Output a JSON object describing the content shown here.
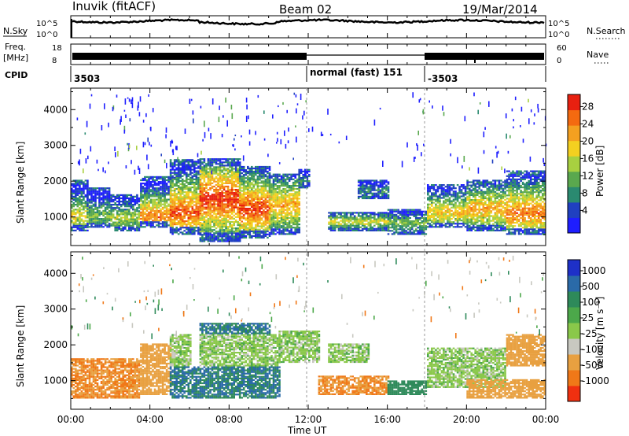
{
  "header": {
    "station": "Inuvik (fitACF)",
    "beam": "Beam 02",
    "date": "19/Mar/2014"
  },
  "strips": {
    "nsky": {
      "left_label": "N.Sky",
      "right_label": "N.Search",
      "left_ticks": [
        "10^5",
        "10^0"
      ],
      "right_ticks": [
        "10^5",
        "10^0"
      ]
    },
    "freq": {
      "left_label": "Freq.",
      "left_unit": "[MHz]",
      "right_label": "Nave",
      "left_ticks": [
        "18",
        "8"
      ],
      "right_ticks": [
        "60",
        "0"
      ]
    },
    "cpid": {
      "label": "CPID",
      "segments": [
        {
          "start_hour": 0,
          "text": "3503"
        },
        {
          "start_hour": 12,
          "text": "normal (fast) 151"
        },
        {
          "start_hour": 18,
          "text": "-3503"
        }
      ]
    }
  },
  "time_axis": {
    "label": "Time UT",
    "ticks": [
      "00:00",
      "04:00",
      "08:00",
      "12:00",
      "16:00",
      "20:00",
      "00:00"
    ],
    "range_hours": [
      0,
      24
    ]
  },
  "power_panel": {
    "ylabel": "Slant Range [km]",
    "yticks": [
      "4000",
      "3000",
      "2000",
      "1000"
    ],
    "colorbar_label": "Power [dB]",
    "colorbar_ticks": [
      "28",
      "24",
      "20",
      "16",
      "12",
      "8",
      "4"
    ],
    "colors": [
      "#1e1eff",
      "#2040c0",
      "#2a8a70",
      "#5aa84e",
      "#a8d040",
      "#f4d020",
      "#f4a020",
      "#f46a10",
      "#e82010"
    ]
  },
  "velocity_panel": {
    "ylabel": "Slant Range [km]",
    "yticks": [
      "4000",
      "3000",
      "2000",
      "1000"
    ],
    "colorbar_label": "Velocity [m s⁻¹]",
    "colorbar_ticks": [
      "1000",
      "500",
      "100",
      "25",
      "-25",
      "-100",
      "-500",
      "-1000"
    ],
    "colors": [
      "#1e30c8",
      "#2a6aa8",
      "#2e8a5a",
      "#4ca84a",
      "#8ac84a",
      "#c8c8c0",
      "#e8a040",
      "#f07818",
      "#f03010"
    ]
  },
  "chart_data": {
    "type": "heatmap",
    "title": "Inuvik (fitACF) Beam 02 19/Mar/2014",
    "xlabel": "Time UT",
    "ylabel": "Slant Range [km]",
    "xlim": [
      0,
      24
    ],
    "ylim": [
      200,
      4600
    ],
    "power_bands": [
      {
        "from": 0.0,
        "to": 0.8,
        "low": 600,
        "high": 2000,
        "peak": 1000,
        "power": 18
      },
      {
        "from": 0.8,
        "to": 2.0,
        "low": 700,
        "high": 1800,
        "peak": 1000,
        "power": 14
      },
      {
        "from": 2.0,
        "to": 3.5,
        "low": 600,
        "high": 1600,
        "peak": 950,
        "power": 16
      },
      {
        "from": 3.5,
        "to": 5.0,
        "low": 700,
        "high": 2100,
        "peak": 1000,
        "power": 24
      },
      {
        "from": 5.0,
        "to": 6.5,
        "low": 500,
        "high": 2600,
        "peak": 1100,
        "power": 26
      },
      {
        "from": 6.5,
        "to": 8.5,
        "low": 300,
        "high": 2600,
        "peak": 1500,
        "power": 28
      },
      {
        "from": 8.5,
        "to": 10.0,
        "low": 400,
        "high": 2400,
        "peak": 1200,
        "power": 27
      },
      {
        "from": 10.0,
        "to": 11.5,
        "low": 500,
        "high": 2200,
        "peak": 1300,
        "power": 22
      },
      {
        "from": 11.5,
        "to": 12.0,
        "low": 1800,
        "high": 2300,
        "peak": 2000,
        "power": 10
      },
      {
        "from": 13.0,
        "to": 16.0,
        "low": 600,
        "high": 1100,
        "peak": 850,
        "power": 18
      },
      {
        "from": 14.5,
        "to": 16.0,
        "low": 1500,
        "high": 2000,
        "peak": 1700,
        "power": 10
      },
      {
        "from": 16.0,
        "to": 18.0,
        "low": 500,
        "high": 1200,
        "peak": 800,
        "power": 14
      },
      {
        "from": 18.0,
        "to": 20.0,
        "low": 700,
        "high": 1900,
        "peak": 1100,
        "power": 20
      },
      {
        "from": 20.0,
        "to": 22.0,
        "low": 600,
        "high": 2000,
        "peak": 1200,
        "power": 22
      },
      {
        "from": 22.0,
        "to": 24.0,
        "low": 500,
        "high": 2300,
        "peak": 1100,
        "power": 24
      }
    ],
    "velocity_bands": [
      {
        "from": 0.0,
        "to": 3.5,
        "low": 500,
        "high": 1600,
        "velocity": -300
      },
      {
        "from": 3.5,
        "to": 5.0,
        "low": 600,
        "high": 2000,
        "velocity": -200
      },
      {
        "from": 5.0,
        "to": 6.0,
        "low": 1400,
        "high": 2300,
        "velocity": 0
      },
      {
        "from": 5.0,
        "to": 10.5,
        "low": 500,
        "high": 1400,
        "velocity": 300
      },
      {
        "from": 6.5,
        "to": 10.5,
        "low": 1400,
        "high": 2300,
        "velocity": 0
      },
      {
        "from": 6.5,
        "to": 10.0,
        "low": 2300,
        "high": 2600,
        "velocity": 300
      },
      {
        "from": 10.5,
        "to": 12.5,
        "low": 1500,
        "high": 2400,
        "velocity": 0
      },
      {
        "from": 13.0,
        "to": 15.0,
        "low": 1500,
        "high": 2000,
        "velocity": 0
      },
      {
        "from": 12.5,
        "to": 16.0,
        "low": 600,
        "high": 1100,
        "velocity": -300
      },
      {
        "from": 16.0,
        "to": 18.0,
        "low": 600,
        "high": 1000,
        "velocity": 100
      },
      {
        "from": 18.0,
        "to": 22.0,
        "low": 800,
        "high": 1900,
        "velocity": 0
      },
      {
        "from": 20.0,
        "to": 24.0,
        "low": 500,
        "high": 1000,
        "velocity": -200
      },
      {
        "from": 22.0,
        "to": 24.0,
        "low": 1400,
        "high": 2300,
        "velocity": -250
      }
    ]
  }
}
